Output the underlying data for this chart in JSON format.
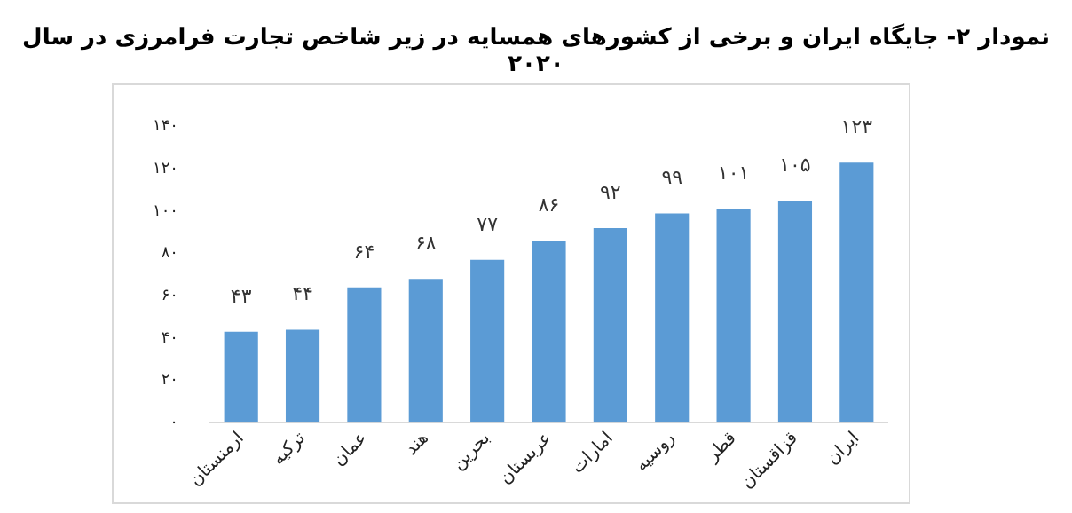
{
  "chart_data": {
    "type": "bar",
    "title": "نمودار ۲- جایگاه ایران و برخی از کشورهای همسایه در زیر شاخص تجارت فرامرزی در سال ۲۰۲۰",
    "categories": [
      "ارمنستان",
      "ترکیه",
      "عمان",
      "هند",
      "بحرین",
      "عربستان",
      "امارات",
      "روسیه",
      "قطر",
      "قزاقستان",
      "ایران"
    ],
    "values": [
      43,
      44,
      64,
      68,
      77,
      86,
      92,
      99,
      101,
      105,
      123
    ],
    "value_labels": [
      "۴۳",
      "۴۴",
      "۶۴",
      "۶۸",
      "۷۷",
      "۸۶",
      "۹۲",
      "۹۹",
      "۱۰۱",
      "۱۰۵",
      "۱۲۳"
    ],
    "color": "#5b9bd5",
    "ylim": [
      0,
      140
    ],
    "yticks": [
      {
        "value": 0,
        "label": "۰"
      },
      {
        "value": 20,
        "label": "۲۰"
      },
      {
        "value": 40,
        "label": "۴۰"
      },
      {
        "value": 60,
        "label": "۶۰"
      },
      {
        "value": 80,
        "label": "۸۰"
      },
      {
        "value": 100,
        "label": "۱۰۰"
      },
      {
        "value": 120,
        "label": "۱۲۰"
      },
      {
        "value": 140,
        "label": "۱۴۰"
      }
    ],
    "grid": false,
    "legend": false
  }
}
